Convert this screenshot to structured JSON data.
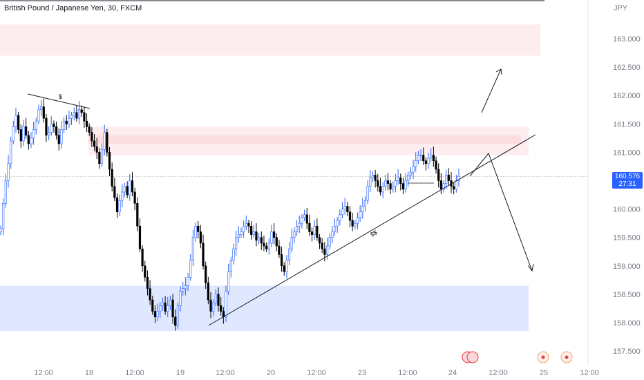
{
  "header": {
    "symbol_title": "British Pound / Japanese Yen, 30, FXCM",
    "currency": "JPY"
  },
  "price_tag": {
    "price": "160.576",
    "countdown": "27:31"
  },
  "colors": {
    "up_candle": "#ffffff",
    "down_candle": "#000000",
    "up_border": "#2962ff",
    "supply_zone": "#f23645",
    "demand_zone": "#2962ff",
    "price_tag": "#2962ff"
  },
  "annotations": {
    "equal_highs_label": "$",
    "trendline_label": "$$"
  },
  "chart_data": {
    "type": "candlestick",
    "title": "British Pound / Japanese Yen, 30, FXCM",
    "ylabel": "JPY",
    "ylim": [
      157.45,
      163.65
    ],
    "y_ticks": [
      "157.500",
      "158.000",
      "158.500",
      "159.000",
      "159.500",
      "160.000",
      "160.500",
      "161.000",
      "161.500",
      "162.000",
      "162.500",
      "163.000"
    ],
    "x_ticks": [
      "12:00",
      "18",
      "12:00",
      "19",
      "12:00",
      "20",
      "12:00",
      "23",
      "12:00",
      "24",
      "12:00",
      "25",
      "12:00"
    ],
    "last_price": 160.576,
    "zones": [
      {
        "kind": "supply",
        "from": 162.7,
        "to": 163.25
      },
      {
        "kind": "supply",
        "from": 160.95,
        "to": 161.45
      },
      {
        "kind": "demand",
        "from": 157.85,
        "to": 158.65
      }
    ],
    "candles_close": [
      159.65,
      160.1,
      160.5,
      160.8,
      161.2,
      161.45,
      161.65,
      161.4,
      161.2,
      161.45,
      161.3,
      161.15,
      161.25,
      161.4,
      161.55,
      161.75,
      161.8,
      161.6,
      161.3,
      161.35,
      161.5,
      161.45,
      161.3,
      161.15,
      161.4,
      161.55,
      161.5,
      161.6,
      161.65,
      161.7,
      161.6,
      161.75,
      161.7,
      161.55,
      161.45,
      161.35,
      161.2,
      161.1,
      161.0,
      160.8,
      161.05,
      161.35,
      161.0,
      160.7,
      160.4,
      160.2,
      159.95,
      160.15,
      160.3,
      160.4,
      160.25,
      160.5,
      160.3,
      160.1,
      159.7,
      159.3,
      159.0,
      158.8,
      158.6,
      158.4,
      158.2,
      158.1,
      158.2,
      158.3,
      158.35,
      158.2,
      158.3,
      158.4,
      158.1,
      157.95,
      158.3,
      158.55,
      158.6,
      158.65,
      158.8,
      159.1,
      159.5,
      159.7,
      159.6,
      159.4,
      159.0,
      158.7,
      158.4,
      158.2,
      158.35,
      158.5,
      158.3,
      158.2,
      158.1,
      158.55,
      158.9,
      159.1,
      159.3,
      159.5,
      159.55,
      159.6,
      159.7,
      159.75,
      159.7,
      159.55,
      159.6,
      159.45,
      159.5,
      159.4,
      159.35,
      159.3,
      159.4,
      159.6,
      159.5,
      159.35,
      159.2,
      159.0,
      158.9,
      159.1,
      159.3,
      159.5,
      159.6,
      159.7,
      159.75,
      159.85,
      159.9,
      159.75,
      159.6,
      159.55,
      159.7,
      159.5,
      159.4,
      159.3,
      159.2,
      159.35,
      159.5,
      159.6,
      159.7,
      159.8,
      159.9,
      160.0,
      160.05,
      159.95,
      159.8,
      159.7,
      159.75,
      159.85,
      159.95,
      160.05,
      160.15,
      160.4,
      160.55,
      160.6,
      160.5,
      160.4,
      160.3,
      160.4,
      160.5,
      160.45,
      160.35,
      160.4,
      160.5,
      160.55,
      160.45,
      160.35,
      160.5,
      160.6,
      160.65,
      160.75,
      160.85,
      160.95,
      160.95,
      160.85,
      160.8,
      160.9,
      160.95,
      160.85,
      160.7,
      160.5,
      160.35,
      160.45,
      160.6,
      160.5,
      160.4,
      160.35,
      160.5,
      160.576
    ]
  }
}
